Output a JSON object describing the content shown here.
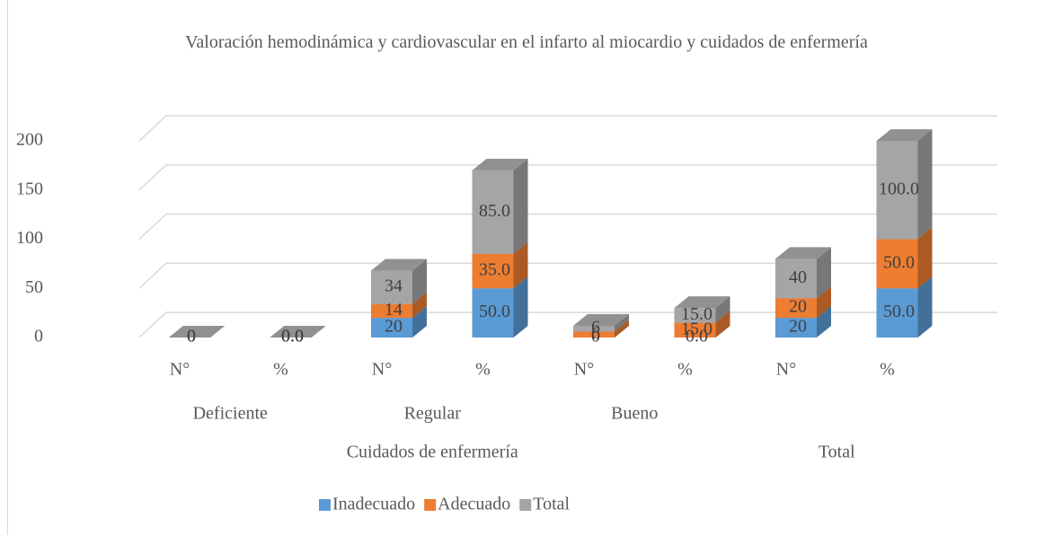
{
  "chart_data": {
    "type": "bar3d_stacked",
    "title": "Valoración hemodinámica y cardiovascular en el infarto al miocardio y cuidados de enfermería",
    "groups": [
      {
        "name": "Cuidados de enfermería",
        "subgroups": [
          {
            "name": "Deficiente",
            "categories": [
              "N°",
              "%"
            ]
          },
          {
            "name": "Regular",
            "categories": [
              "N°",
              "%"
            ]
          },
          {
            "name": "Bueno",
            "categories": [
              "N°",
              "%"
            ]
          }
        ]
      },
      {
        "name": "Total",
        "categories": [
          "N°",
          "%"
        ]
      }
    ],
    "series": [
      {
        "name": "Inadecuado",
        "color": "#5b9bd5",
        "values": [
          0,
          0,
          20,
          50,
          0,
          0,
          20,
          50
        ],
        "value_labels": [
          "0",
          "0.0",
          "20",
          "50.0",
          "0",
          "0.0",
          "20",
          "50.0"
        ]
      },
      {
        "name": "Adecuado",
        "color": "#ed7d31",
        "values": [
          0,
          0,
          14,
          35,
          6,
          15,
          20,
          50
        ],
        "value_labels": [
          "0",
          "0.0",
          "14",
          "35.0",
          "6",
          "15.0",
          "20",
          "50.0"
        ]
      },
      {
        "name": "Total",
        "color": "#a5a5a5",
        "values": [
          0,
          0,
          34,
          85,
          6,
          15,
          40,
          100
        ],
        "value_labels": [
          "0",
          "0.0",
          "34",
          "85.0",
          "6",
          "15.0",
          "40",
          "100.0"
        ]
      }
    ],
    "ylim": [
      0,
      200
    ],
    "yticks": [
      0,
      50,
      100,
      150,
      200
    ],
    "grid": true,
    "legend": "bottom"
  }
}
